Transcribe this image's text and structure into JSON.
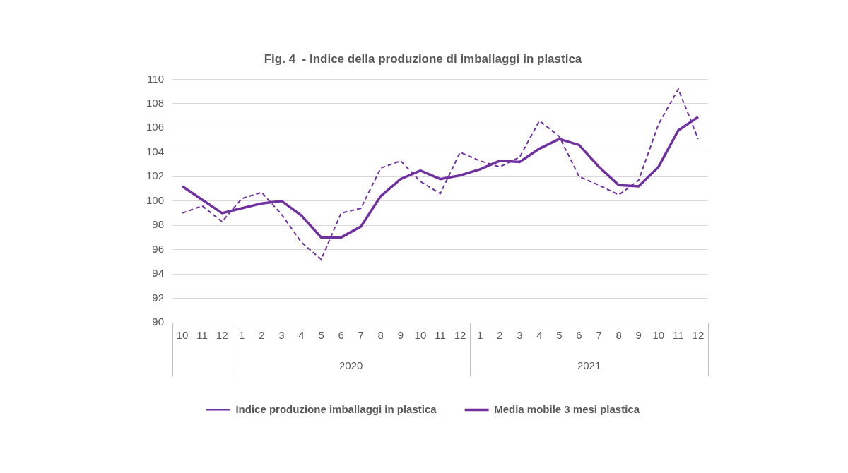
{
  "chart_data": {
    "type": "line",
    "title": "Fig. 4  - Indice della produzione di imballaggi in plastica",
    "categories": [
      "10",
      "11",
      "12",
      "1",
      "2",
      "3",
      "4",
      "5",
      "6",
      "7",
      "8",
      "9",
      "10",
      "11",
      "12",
      "1",
      "2",
      "3",
      "4",
      "5",
      "6",
      "7",
      "8",
      "9",
      "10",
      "11",
      "12"
    ],
    "category_groups": [
      {
        "label": "2020",
        "start": 3,
        "end": 14
      },
      {
        "label": "2021",
        "start": 15,
        "end": 26
      }
    ],
    "series": [
      {
        "name": "Indice produzione imballaggi in plastica",
        "color": "#7030a0",
        "line_style": "dashed",
        "values": [
          99.0,
          99.6,
          98.3,
          100.2,
          100.7,
          98.9,
          96.6,
          95.2,
          99.0,
          99.4,
          102.7,
          103.3,
          101.6,
          100.6,
          104.0,
          103.3,
          102.8,
          103.6,
          106.6,
          105.3,
          102.0,
          101.3,
          100.5,
          101.7,
          106.3,
          109.2,
          105.1
        ]
      },
      {
        "name": "Media mobile 3 mesi plastica",
        "color": "#7030a0",
        "line_style": "solid",
        "values": [
          101.2,
          100.1,
          99.0,
          99.4,
          99.8,
          100.0,
          98.8,
          97.0,
          97.0,
          97.9,
          100.4,
          101.8,
          102.5,
          101.8,
          102.1,
          102.6,
          103.3,
          103.2,
          104.3,
          105.1,
          104.6,
          102.8,
          101.3,
          101.2,
          102.8,
          105.8,
          106.9
        ]
      }
    ],
    "ylim": [
      90,
      110
    ],
    "yticks": [
      90,
      92,
      94,
      96,
      98,
      100,
      102,
      104,
      106,
      108,
      110
    ],
    "grid": true,
    "legend": "bottom"
  }
}
